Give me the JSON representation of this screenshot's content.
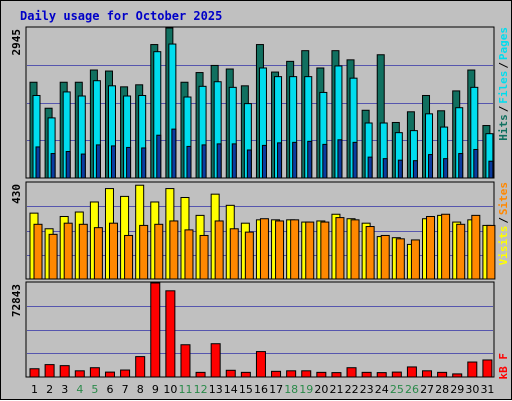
{
  "title": "Daily usage for October 2025",
  "colors": {
    "pages": "#118a5e",
    "files": "#00ddee",
    "hits": "#117060",
    "visits": "#ffff00",
    "sites": "#ff8800",
    "kbytes": "#ff0000",
    "weekday_label": "#000000",
    "weekend_label": "#2a8a4a"
  },
  "chart_data": [
    {
      "type": "bar",
      "title": "Daily usage for October 2025",
      "panel": "hits-files-pages",
      "ymax_label": "2945",
      "ylim": [
        0,
        2945
      ],
      "legend": [
        "Pages",
        "/",
        "Files",
        "/",
        "Hits"
      ],
      "categories": [
        "1",
        "2",
        "3",
        "4",
        "5",
        "6",
        "7",
        "8",
        "9",
        "10",
        "11",
        "12",
        "13",
        "14",
        "15",
        "16",
        "17",
        "18",
        "19",
        "20",
        "21",
        "22",
        "23",
        "24",
        "25",
        "26",
        "27",
        "28",
        "29",
        "30",
        "31"
      ],
      "series": [
        {
          "name": "Hits",
          "values": [
            1880,
            1370,
            1880,
            1880,
            2120,
            2100,
            1790,
            1830,
            2620,
            2945,
            1880,
            2070,
            2210,
            2140,
            1810,
            2620,
            2080,
            2290,
            2500,
            2160,
            2500,
            2320,
            1330,
            2420,
            1090,
            1300,
            1620,
            1320,
            1710,
            2120,
            1030
          ]
        },
        {
          "name": "Files",
          "values": [
            1620,
            1180,
            1690,
            1610,
            1910,
            1810,
            1610,
            1620,
            2480,
            2630,
            1590,
            1800,
            1890,
            1780,
            1460,
            2160,
            1990,
            1990,
            1990,
            1680,
            2200,
            1960,
            1080,
            1080,
            890,
            930,
            1260,
            1000,
            1380,
            1780,
            870
          ]
        },
        {
          "name": "Pages",
          "values": [
            610,
            480,
            520,
            470,
            650,
            630,
            600,
            590,
            840,
            960,
            620,
            650,
            670,
            670,
            550,
            640,
            690,
            700,
            720,
            660,
            750,
            700,
            410,
            380,
            350,
            340,
            460,
            380,
            480,
            560,
            330
          ]
        }
      ]
    },
    {
      "type": "bar",
      "panel": "visits-sites",
      "ymax_label": "430",
      "ylim": [
        0,
        430
      ],
      "legend": [
        "Sites",
        "/",
        "Visits"
      ],
      "categories": [
        "1",
        "2",
        "3",
        "4",
        "5",
        "6",
        "7",
        "8",
        "9",
        "10",
        "11",
        "12",
        "13",
        "14",
        "15",
        "16",
        "17",
        "18",
        "19",
        "20",
        "21",
        "22",
        "23",
        "24",
        "25",
        "26",
        "27",
        "28",
        "29",
        "30",
        "31"
      ],
      "series": [
        {
          "name": "Visits",
          "values": [
            295,
            225,
            280,
            300,
            345,
            405,
            370,
            420,
            345,
            405,
            365,
            285,
            380,
            330,
            250,
            265,
            265,
            265,
            255,
            260,
            290,
            270,
            250,
            190,
            185,
            155,
            270,
            285,
            255,
            265,
            240
          ]
        },
        {
          "name": "Sites",
          "values": [
            245,
            200,
            250,
            245,
            230,
            250,
            195,
            240,
            245,
            260,
            220,
            195,
            260,
            225,
            210,
            270,
            260,
            265,
            255,
            255,
            275,
            265,
            235,
            195,
            180,
            175,
            280,
            290,
            245,
            285,
            240
          ]
        }
      ]
    },
    {
      "type": "bar",
      "panel": "kbytes",
      "ymax_label": "72843",
      "ylim": [
        0,
        72843
      ],
      "legend": [
        "KBytes"
      ],
      "categories": [
        "1",
        "2",
        "3",
        "4",
        "5",
        "6",
        "7",
        "8",
        "9",
        "10",
        "11",
        "12",
        "13",
        "14",
        "15",
        "16",
        "17",
        "18",
        "19",
        "20",
        "21",
        "22",
        "23",
        "24",
        "25",
        "26",
        "27",
        "28",
        "29",
        "30",
        "31"
      ],
      "series": [
        {
          "name": "KBytes",
          "values": [
            6400,
            9600,
            8800,
            4800,
            7200,
            3800,
            5400,
            15800,
            72843,
            66800,
            25000,
            3600,
            25800,
            5200,
            3600,
            19700,
            4400,
            4800,
            4800,
            3600,
            3400,
            7200,
            3600,
            3400,
            3800,
            7800,
            4800,
            3600,
            2400,
            11600,
            13200
          ]
        }
      ]
    }
  ]
}
